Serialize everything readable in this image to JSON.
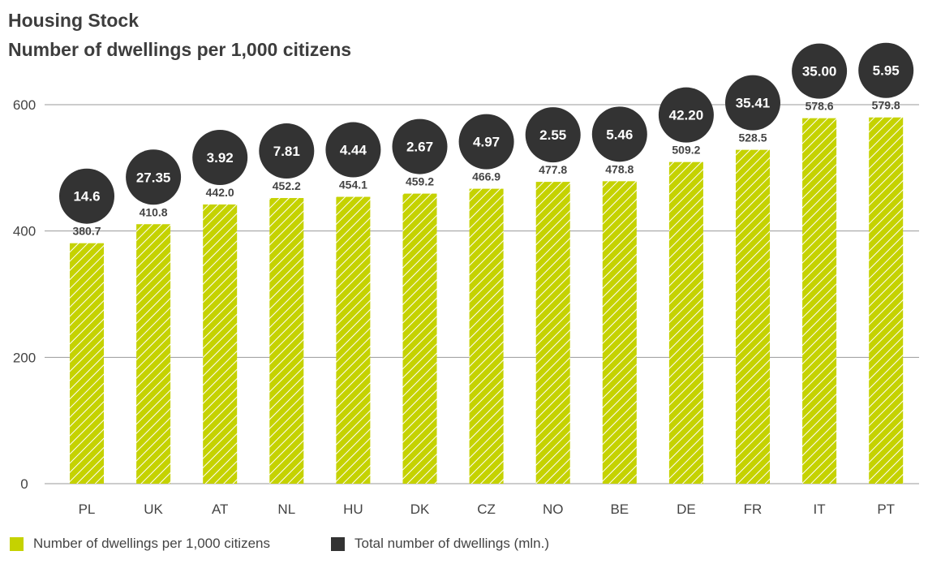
{
  "chart_data": {
    "type": "bar",
    "title": "Housing Stock",
    "subtitle": "Number of dwellings per 1,000 citizens",
    "categories": [
      "PL",
      "UK",
      "AT",
      "NL",
      "HU",
      "DK",
      "CZ",
      "NO",
      "BE",
      "DE",
      "FR",
      "IT",
      "PT"
    ],
    "series": [
      {
        "name": "Number of dwellings per 1,000 citizens",
        "color": "#c5d200",
        "values": [
          380.7,
          410.8,
          442.0,
          452.2,
          454.1,
          459.2,
          466.9,
          477.8,
          478.8,
          509.2,
          528.5,
          578.6,
          579.8
        ],
        "labels": [
          "380.7",
          "410.8",
          "442.0",
          "452.2",
          "454.1",
          "459.2",
          "466.9",
          "477.8",
          "478.8",
          "509.2",
          "528.5",
          "578.6",
          "579.8"
        ]
      },
      {
        "name": "Total number of dwellings (mln.)",
        "color": "#333333",
        "values": [
          14.6,
          27.35,
          3.92,
          7.81,
          4.44,
          2.67,
          4.97,
          2.55,
          5.46,
          42.2,
          35.41,
          35.0,
          5.95
        ],
        "labels": [
          "14.6",
          "27.35",
          "3.92",
          "7.81",
          "4.44",
          "2.67",
          "4.97",
          "2.55",
          "5.46",
          "42.20",
          "35.41",
          "35.00",
          "5.95"
        ]
      }
    ],
    "yticks": [
      "0",
      "200",
      "400",
      "600"
    ],
    "ytick_values": [
      0,
      200,
      400,
      600
    ],
    "ylim": [
      0,
      600
    ],
    "xlabel": "",
    "ylabel": "",
    "grid": true,
    "legend_position": "bottom-left"
  }
}
